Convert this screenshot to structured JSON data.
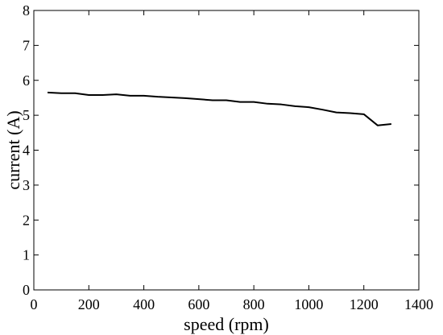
{
  "chart_data": {
    "type": "line",
    "xlabel": "speed (rpm)",
    "ylabel": "current (A)",
    "xlim": [
      0,
      1400
    ],
    "ylim": [
      0,
      8
    ],
    "grid": false,
    "x_ticks": [
      0,
      200,
      400,
      600,
      800,
      1000,
      1200,
      1400
    ],
    "y_ticks": [
      0,
      1,
      2,
      3,
      4,
      5,
      6,
      7,
      8
    ],
    "x_tick_labels": [
      "0",
      "200",
      "400",
      "600",
      "800",
      "1000",
      "1200",
      "1400"
    ],
    "y_tick_labels": [
      "0",
      "1",
      "2",
      "3",
      "4",
      "5",
      "6",
      "7",
      "8"
    ],
    "series": [
      {
        "color": "#000000",
        "x": [
          50,
          100,
          150,
          200,
          250,
          300,
          350,
          400,
          450,
          500,
          550,
          600,
          650,
          700,
          750,
          800,
          850,
          900,
          950,
          1000,
          1050,
          1100,
          1150,
          1200,
          1250,
          1300
        ],
        "y": [
          5.65,
          5.63,
          5.63,
          5.58,
          5.58,
          5.6,
          5.56,
          5.56,
          5.53,
          5.51,
          5.49,
          5.46,
          5.43,
          5.43,
          5.38,
          5.38,
          5.33,
          5.31,
          5.26,
          5.23,
          5.16,
          5.08,
          5.06,
          5.03,
          4.71,
          4.75
        ]
      }
    ]
  }
}
